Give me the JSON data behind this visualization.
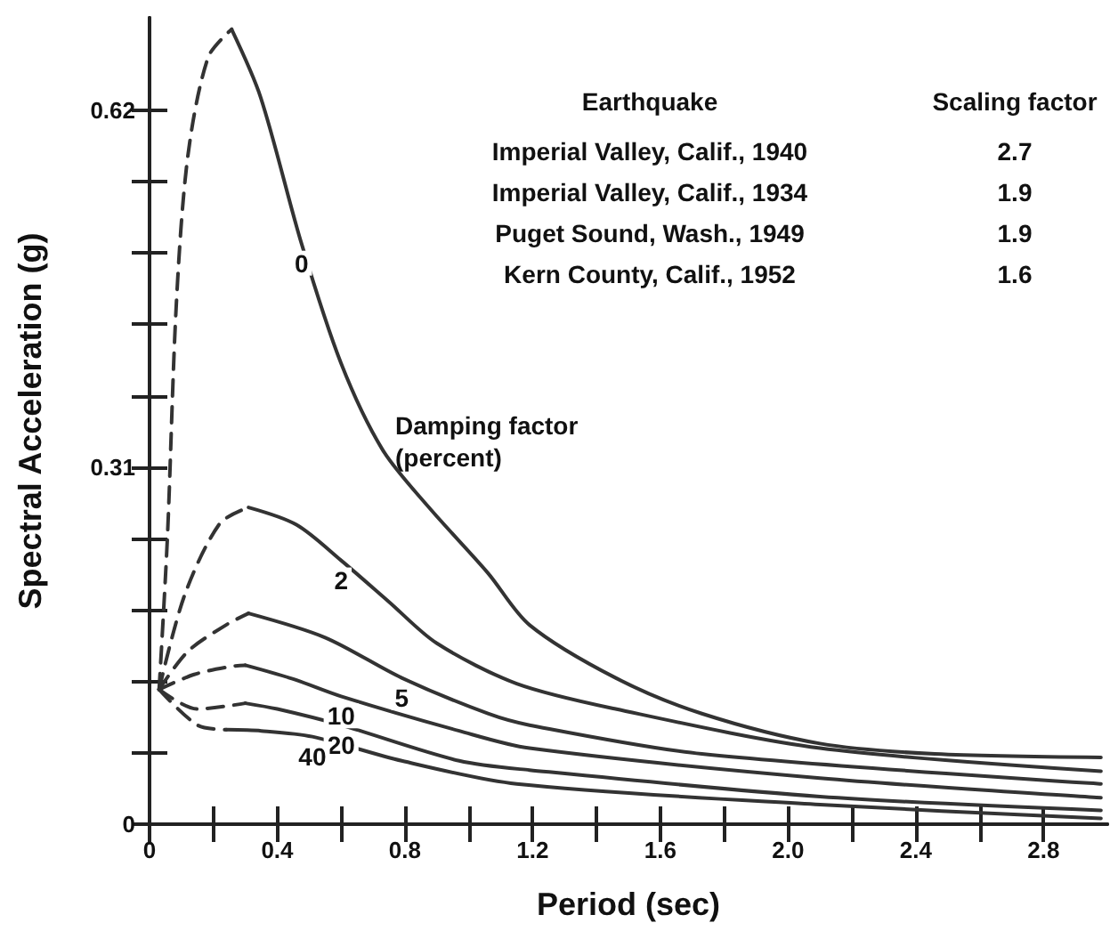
{
  "chart_data": {
    "type": "line",
    "xlabel": "Period (sec)",
    "ylabel": "Spectral Acceleration (g)",
    "xlim": [
      0,
      3.0
    ],
    "ylim": [
      0,
      0.7
    ],
    "xticks": [
      0,
      {
        "value": 0.2,
        "label": null
      },
      0.4,
      {
        "value": 0.6,
        "label": null
      },
      0.8,
      {
        "value": 1.0,
        "label": null
      },
      1.2,
      {
        "value": 1.4,
        "label": null
      },
      1.6,
      {
        "value": 1.8,
        "label": null
      },
      {
        "value": 2.0,
        "label": "2.0"
      },
      {
        "value": 2.2,
        "label": null
      },
      2.4,
      {
        "value": 2.6,
        "label": null
      },
      2.8
    ],
    "yticks": [
      0,
      {
        "value": 0.062,
        "label": null
      },
      {
        "value": 0.124,
        "label": null
      },
      {
        "value": 0.186,
        "label": null
      },
      {
        "value": 0.248,
        "label": null
      },
      0.31,
      {
        "value": 0.372,
        "label": null
      },
      {
        "value": 0.434,
        "label": null
      },
      {
        "value": 0.496,
        "label": null
      },
      {
        "value": 0.558,
        "label": null
      },
      0.62
    ],
    "grid": false,
    "legend": false,
    "marker": "none",
    "series": [
      {
        "color": "#333333",
        "line_style": "dashed",
        "x": [
          0.03,
          0.056,
          0.084,
          0.12,
          0.184,
          0.257
        ],
        "values": [
          0.117,
          0.249,
          0.452,
          0.58,
          0.666,
          0.69
        ]
      },
      {
        "name": "0",
        "color": "#333333",
        "line_style": "solid",
        "x": [
          0.257,
          0.348,
          0.476,
          0.6,
          0.73,
          0.875,
          1.06,
          1.19,
          1.46,
          1.73,
          2.1,
          2.46,
          2.98
        ],
        "values": [
          0.69,
          0.631,
          0.504,
          0.4,
          0.325,
          0.275,
          0.218,
          0.173,
          0.127,
          0.096,
          0.07,
          0.061,
          0.058
        ]
      },
      {
        "color": "#333333",
        "line_style": "dashed",
        "x": [
          0.03,
          0.11,
          0.22,
          0.31
        ],
        "values": [
          0.117,
          0.199,
          0.261,
          0.275
        ]
      },
      {
        "name": "2",
        "color": "#333333",
        "line_style": "solid",
        "x": [
          0.31,
          0.46,
          0.6,
          0.75,
          0.9,
          1.15,
          1.46,
          2.1,
          2.98
        ],
        "values": [
          0.275,
          0.26,
          0.229,
          0.193,
          0.157,
          0.122,
          0.1,
          0.066,
          0.046
        ]
      },
      {
        "color": "#333333",
        "line_style": "dashed",
        "x": [
          0.03,
          0.12,
          0.24,
          0.31
        ],
        "values": [
          0.117,
          0.15,
          0.173,
          0.183
        ]
      },
      {
        "name": "5",
        "color": "#333333",
        "line_style": "solid",
        "x": [
          0.31,
          0.55,
          0.79,
          1.06,
          1.19,
          1.73,
          2.98
        ],
        "values": [
          0.183,
          0.162,
          0.127,
          0.096,
          0.086,
          0.061,
          0.035
        ]
      },
      {
        "color": "#333333",
        "line_style": "dashed",
        "x": [
          0.03,
          0.14,
          0.257,
          0.3
        ],
        "values": [
          0.117,
          0.13,
          0.137,
          0.138
        ]
      },
      {
        "name": "10",
        "color": "#333333",
        "line_style": "solid",
        "x": [
          0.3,
          0.45,
          0.6,
          0.97,
          1.19,
          2.1,
          2.98
        ],
        "values": [
          0.138,
          0.126,
          0.111,
          0.081,
          0.066,
          0.04,
          0.023
        ]
      },
      {
        "color": "#333333",
        "line_style": "dashed",
        "x": [
          0.03,
          0.15,
          0.3
        ],
        "values": [
          0.117,
          0.1,
          0.105
        ]
      },
      {
        "name": "20",
        "color": "#333333",
        "line_style": "solid",
        "x": [
          0.3,
          0.4,
          0.6,
          0.97,
          1.19,
          2.1,
          2.98
        ],
        "values": [
          0.105,
          0.1,
          0.086,
          0.055,
          0.047,
          0.024,
          0.012
        ]
      },
      {
        "color": "#333333",
        "line_style": "dashed",
        "x": [
          0.03,
          0.15,
          0.24
        ],
        "values": [
          0.117,
          0.086,
          0.082
        ]
      },
      {
        "name": "40",
        "color": "#333333",
        "line_style": "solid",
        "x": [
          0.24,
          0.35,
          0.51,
          0.79,
          1.15,
          2.1,
          2.98
        ],
        "values": [
          0.082,
          0.081,
          0.076,
          0.055,
          0.035,
          0.017,
          0.005
        ]
      }
    ],
    "annotations": [
      "Damping factor\n(percent)",
      "Earthquake",
      "Scaling factor",
      "Imperial Valley, Calif., 1940",
      "2.7",
      "Imperial Valley, Calif., 1934",
      "1.9",
      "Puget Sound, Wash., 1949",
      "1.9",
      "Kern County, Calif., 1952",
      "1.6"
    ]
  }
}
